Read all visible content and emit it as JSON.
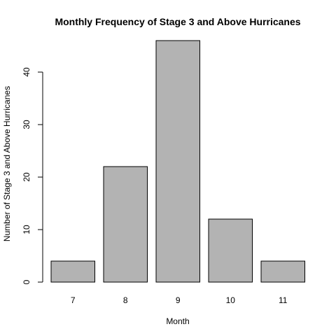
{
  "chart_data": {
    "type": "bar",
    "title": "Monthly Frequency of Stage 3 and Above Hurricanes",
    "xlabel": "Month",
    "ylabel": "Number of Stage 3 and Above Hurricanes",
    "categories": [
      "7",
      "8",
      "9",
      "10",
      "11"
    ],
    "values": [
      4,
      22,
      46,
      12,
      4
    ],
    "ylim": [
      0,
      48
    ],
    "yticks": [
      "0",
      "10",
      "20",
      "30",
      "40"
    ],
    "bar_color": "#b3b3b3",
    "grid": false,
    "legend": "none"
  }
}
